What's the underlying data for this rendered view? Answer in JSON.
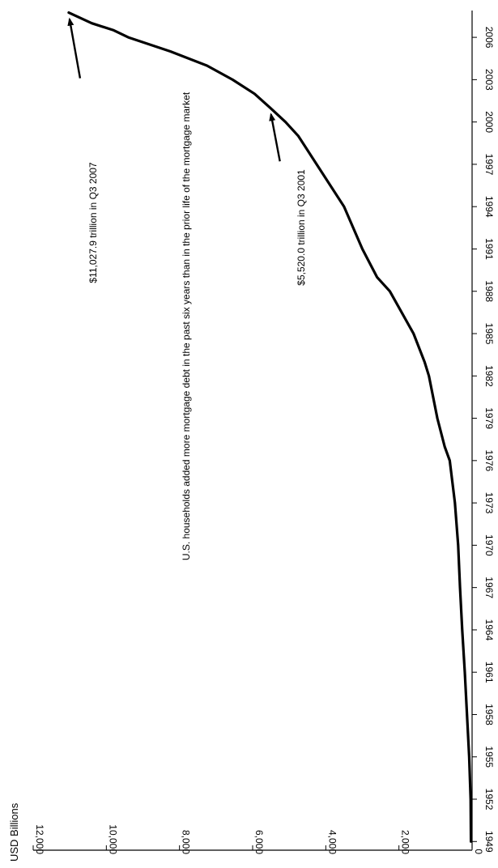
{
  "chart_data": {
    "type": "line",
    "title": "",
    "ylabel": "USD Billions",
    "xlabel": "",
    "x_ticks": [
      "1949",
      "1952",
      "1955",
      "1958",
      "1961",
      "1964",
      "1967",
      "1970",
      "1973",
      "1976",
      "1979",
      "1982",
      "1985",
      "1988",
      "1991",
      "1994",
      "1997",
      "2000",
      "2003",
      "2006"
    ],
    "y_ticks": [
      "0",
      "2,000",
      "4,000",
      "6,000",
      "8,000",
      "10,000",
      "12,000"
    ],
    "ylim": [
      0,
      12000
    ],
    "xlim": [
      1948.5,
      2007.9
    ],
    "grid": false,
    "orientation": "rotated 90° clockwise",
    "series": [
      {
        "name": "",
        "x": [
          1949,
          1952,
          1955,
          1958,
          1961,
          1964,
          1967,
          1970,
          1973,
          1976,
          1977,
          1979,
          1982,
          1983,
          1985,
          1988,
          1989,
          1991,
          1994,
          1997,
          1999,
          2000,
          2001,
          2002,
          2003,
          2004,
          2005,
          2006,
          2006.5,
          2007,
          2007.75
        ],
        "y": [
          30,
          40,
          80,
          140,
          200,
          270,
          330,
          380,
          470,
          610,
          750,
          950,
          1180,
          1300,
          1600,
          2250,
          2600,
          3000,
          3500,
          4250,
          4750,
          5100,
          5520,
          5950,
          6550,
          7250,
          8250,
          9400,
          9800,
          10400,
          11027.9
        ]
      }
    ],
    "annotations": [
      {
        "text": "$11,027.9 trillion in Q3 2007",
        "x": 2007.75,
        "y": 11027.9
      },
      {
        "text": "$5,520.0 trillion in Q3 2001",
        "x": 2001,
        "y": 5520
      }
    ],
    "note": "U.S. households added more mortgage debt in the past six years than in the prior life of the mortgage market"
  }
}
